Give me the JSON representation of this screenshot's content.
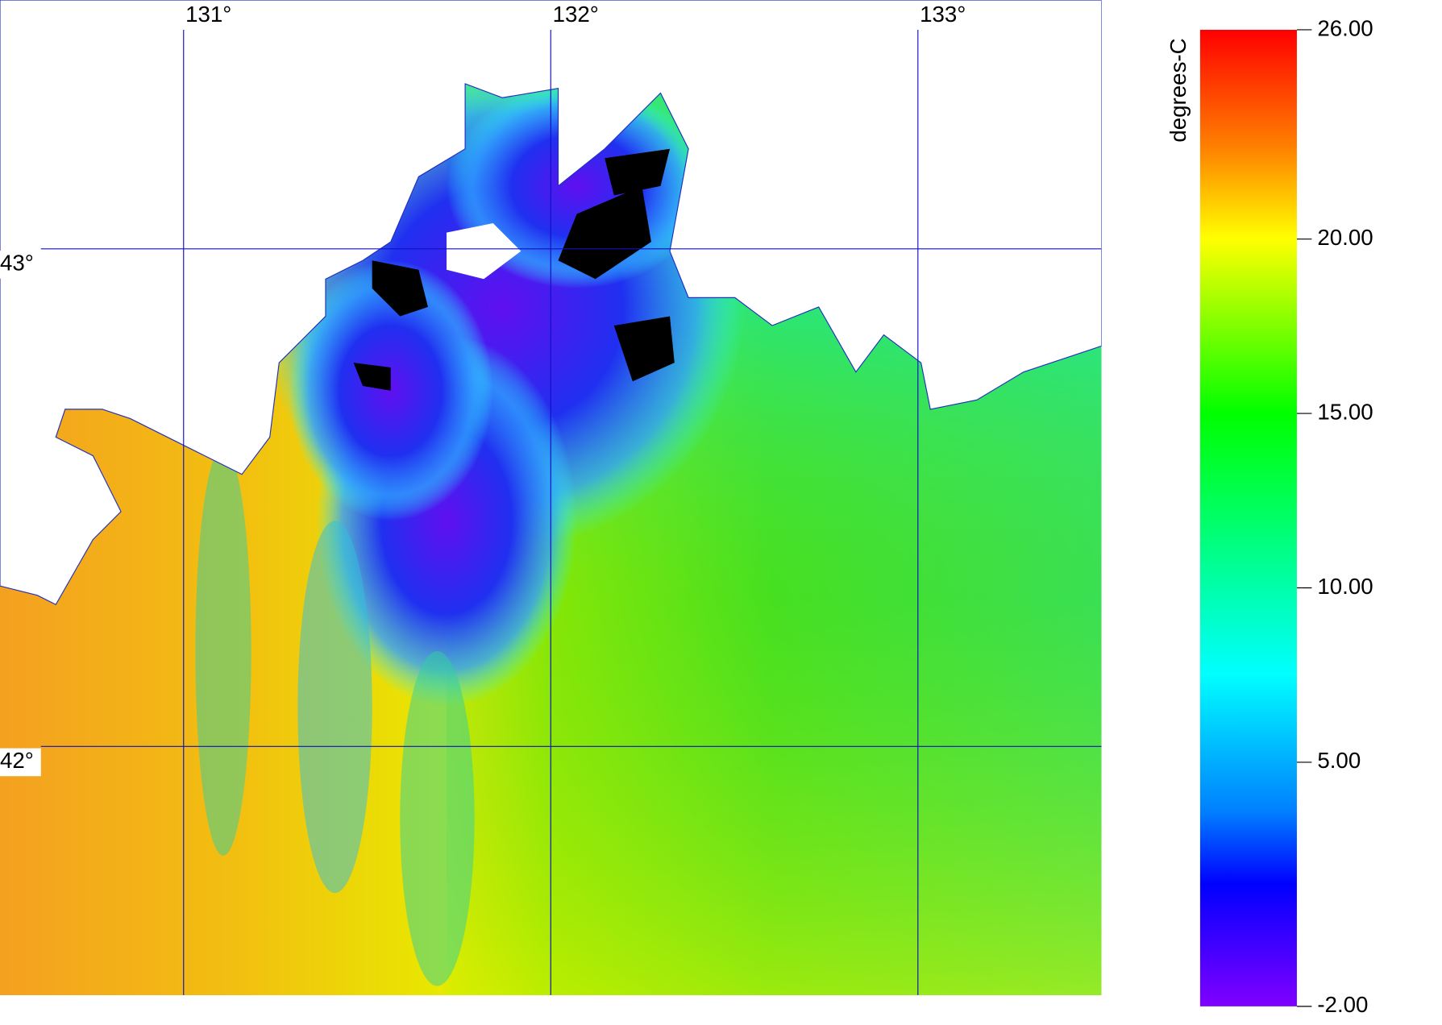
{
  "map": {
    "lon_range": [
      130.5,
      133.5
    ],
    "lat_range": [
      41.5,
      43.5
    ],
    "lon_ticks": [
      {
        "value": 131,
        "label": "131°"
      },
      {
        "value": 132,
        "label": "132°"
      },
      {
        "value": 133,
        "label": "133°"
      }
    ],
    "lat_ticks": [
      {
        "value": 43,
        "label": "43°"
      },
      {
        "value": 42,
        "label": "42°"
      }
    ],
    "colorbar": {
      "label": "degrees-C",
      "range": [
        -2,
        26
      ],
      "ticks": [
        {
          "value": 26,
          "label": "26.00"
        },
        {
          "value": 20,
          "label": "20.00"
        },
        {
          "value": 15,
          "label": "15.00"
        },
        {
          "value": 10,
          "label": "10.00"
        },
        {
          "value": 5,
          "label": "5.00"
        },
        {
          "value": -2,
          "label": "-2.00"
        }
      ]
    }
  }
}
